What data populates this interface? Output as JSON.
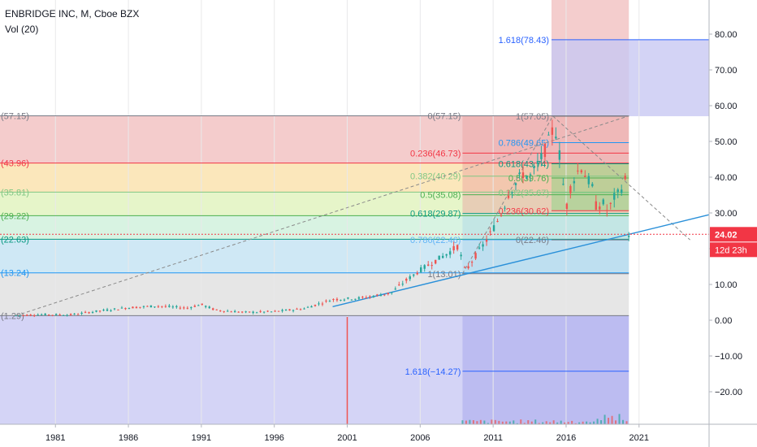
{
  "header": {
    "title": "ENBRIDGE INC, M, Cboe BZX",
    "volume_label": "Vol (20)"
  },
  "price_tag": {
    "value": "24.02",
    "countdown": "12d 23h",
    "color": "#f23645"
  },
  "colors": {
    "candle_up": "#26a69a",
    "candle_down": "#ef5350",
    "trend_line": "#2a90d9",
    "background": "#ffffff",
    "axis_text": "#131722"
  },
  "chart_data": {
    "type": "candlestick",
    "symbol": "ENBRIDGE INC",
    "interval": "M",
    "exchange": "Cboe BZX",
    "x_ticks": [
      "1981",
      "1986",
      "1991",
      "1996",
      "2001",
      "2006",
      "2011",
      "2016",
      "2021"
    ],
    "y_ticks": [
      "−20.00",
      "−10.00",
      "0.00",
      "10.00",
      "20.00",
      "30.00",
      "40.00",
      "50.00",
      "60.00",
      "70.00",
      "80.00"
    ],
    "ylim": [
      -30,
      90
    ],
    "xlim": [
      1977.2,
      2025.8
    ],
    "last_price": 24.02,
    "price_path": [
      [
        1978.3,
        1.3
      ],
      [
        1980,
        1.6
      ],
      [
        1982,
        1.5
      ],
      [
        1984,
        2.6
      ],
      [
        1986,
        3.5
      ],
      [
        1988,
        4.0
      ],
      [
        1990,
        3.4
      ],
      [
        1991,
        4.4
      ],
      [
        1992,
        2.8
      ],
      [
        1994,
        2.2
      ],
      [
        1996,
        2.4
      ],
      [
        1998,
        3.2
      ],
      [
        2000,
        5.8
      ],
      [
        2002,
        6.2
      ],
      [
        2004,
        7.6
      ],
      [
        2005,
        11.0
      ],
      [
        2006,
        14.0
      ],
      [
        2007,
        16.5
      ],
      [
        2008,
        19.0
      ],
      [
        2008.6,
        20.8
      ],
      [
        2009.1,
        13.5
      ],
      [
        2009.7,
        17.5
      ],
      [
        2010.5,
        22.0
      ],
      [
        2011.2,
        27.0
      ],
      [
        2011.7,
        31.0
      ],
      [
        2012,
        35.0
      ],
      [
        2012.5,
        38.0
      ],
      [
        2013,
        41.0
      ],
      [
        2013.5,
        40.0
      ],
      [
        2014,
        43.0
      ],
      [
        2014.5,
        47.0
      ],
      [
        2015,
        52.0
      ],
      [
        2015.2,
        55.0
      ],
      [
        2015.6,
        45.0
      ],
      [
        2016,
        31.0
      ],
      [
        2016.3,
        37.0
      ],
      [
        2016.7,
        41.0
      ],
      [
        2017,
        43.0
      ],
      [
        2017.4,
        40.0
      ],
      [
        2017.8,
        37.0
      ],
      [
        2018.1,
        31.0
      ],
      [
        2018.5,
        33.0
      ],
      [
        2018.9,
        30.0
      ],
      [
        2019.2,
        34.0
      ],
      [
        2019.5,
        35.0
      ],
      [
        2019.8,
        37.0
      ],
      [
        2020,
        40.0
      ],
      [
        2020.2,
        37.0
      ],
      [
        2020.3,
        24.02
      ]
    ],
    "fib_retracement_left": {
      "line_color": "#787b86",
      "levels": [
        {
          "label": "(57.15)",
          "value": 57.15,
          "color": "#787b86",
          "fill": "#f4cccc"
        },
        {
          "label": "(43.96)",
          "value": 43.96,
          "color": "#f23645",
          "fill": "#fbe7bb"
        },
        {
          "label": "(35.81)",
          "value": 35.81,
          "color": "#81c784",
          "fill": "#e6f5c9"
        },
        {
          "label": "(29.22)",
          "value": 29.22,
          "color": "#4caf50",
          "fill": "#d8f3e2"
        },
        {
          "label": "(22.63)",
          "value": 22.63,
          "color": "#089981",
          "fill": "#cfe8f5"
        },
        {
          "label": "(13.24)",
          "value": 13.24,
          "color": "#2196f3",
          "fill": "#e6e6e6"
        },
        {
          "label": "(1.29)",
          "value": 1.29,
          "color": "#787b86",
          "fill": "#d4d4f6"
        }
      ]
    },
    "fib_retracement_right": {
      "start_year": 2008.9,
      "end_year": 2019.5,
      "levels": [
        {
          "label": "0(57.15)",
          "value": 57.15,
          "color": "#787b86"
        },
        {
          "label": "0.236(46.73)",
          "value": 46.73,
          "color": "#f23645"
        },
        {
          "label": "0.382(40.29)",
          "value": 40.29,
          "color": "#81c784"
        },
        {
          "label": "0.5(35.08)",
          "value": 35.08,
          "color": "#4caf50"
        },
        {
          "label": "0.618(29.87)",
          "value": 29.87,
          "color": "#089981"
        },
        {
          "label": "0.786(22.46)",
          "value": 22.46,
          "color": "#64b5f6"
        },
        {
          "label": "1(13.01)",
          "value": 13.01,
          "color": "#787b86"
        },
        {
          "label": "1.618(−14.27)",
          "value": -14.27,
          "color": "#2962ff"
        }
      ]
    },
    "fib_retracement_inner": {
      "start_year": 2015.0,
      "end_year": 2019.5,
      "levels": [
        {
          "label": "1(57.05)",
          "value": 57.05,
          "color": "#787b86"
        },
        {
          "label": "0.786(49.65)",
          "value": 49.65,
          "color": "#2196f3"
        },
        {
          "label": "0.618(43.74)",
          "value": 43.74,
          "color": "#089981"
        },
        {
          "label": "0.5(39.76)",
          "value": 39.76,
          "color": "#4caf50"
        },
        {
          "label": "0.382(35.67)",
          "value": 35.67,
          "color": "#81c784"
        },
        {
          "label": "0.236(30.62)",
          "value": 30.62,
          "color": "#f23645"
        },
        {
          "label": "0(22.46)",
          "value": 22.46,
          "color": "#787b86"
        },
        {
          "label": "1.618(78.43)",
          "value": 78.43,
          "color": "#2962ff"
        }
      ]
    }
  }
}
